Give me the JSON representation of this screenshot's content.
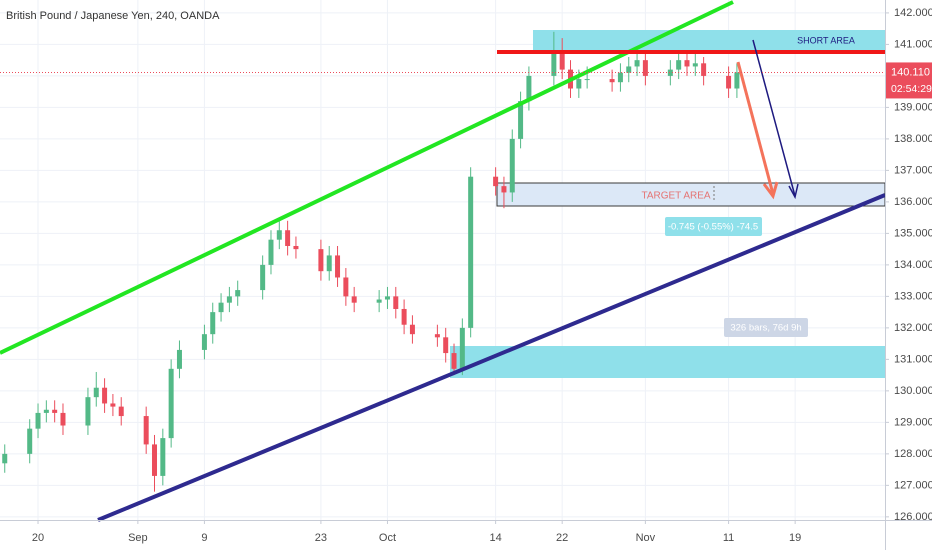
{
  "chart_data": {
    "type": "candlestick",
    "title": "British Pound / Japanese Yen, 240, OANDA",
    "x": [
      16,
      19,
      20,
      21,
      22,
      23,
      26,
      27,
      28,
      29,
      30,
      33,
      34,
      35,
      36,
      37,
      40,
      41,
      42,
      43,
      44,
      47,
      48,
      49,
      50,
      51,
      54,
      55,
      56,
      57,
      58,
      61,
      62,
      63,
      64,
      65,
      68,
      69,
      70,
      71,
      72,
      75,
      76,
      77,
      78,
      79,
      82,
      83,
      84,
      85,
      86,
      89,
      90,
      91,
      92,
      93,
      96,
      97,
      98,
      99,
      100,
      103,
      104
    ],
    "open": [
      127.7,
      128.0,
      128.8,
      129.3,
      129.4,
      129.3,
      128.9,
      129.8,
      130.1,
      129.6,
      129.5,
      129.2,
      128.3,
      127.3,
      128.5,
      130.7,
      131.3,
      131.8,
      132.5,
      132.8,
      133.0,
      133.2,
      134.0,
      134.8,
      135.1,
      134.6,
      134.5,
      133.8,
      134.3,
      133.6,
      133.0,
      132.8,
      132.9,
      133.0,
      132.6,
      132.1,
      131.8,
      131.7,
      131.2,
      130.7,
      132.0,
      136.8,
      136.5,
      136.3,
      138.0,
      139.2,
      140.0,
      140.8,
      140.2,
      139.6,
      139.9,
      139.9,
      139.8,
      140.1,
      140.3,
      140.5,
      140.0,
      140.2,
      140.5,
      140.3,
      140.4,
      140.0,
      139.6
    ],
    "high": [
      128.3,
      129.1,
      129.6,
      129.7,
      129.7,
      129.6,
      130.1,
      130.6,
      130.4,
      129.9,
      129.8,
      129.5,
      128.6,
      128.8,
      131.0,
      131.6,
      132.1,
      132.8,
      133.1,
      133.3,
      133.5,
      134.3,
      135.1,
      135.4,
      135.4,
      134.9,
      134.8,
      134.6,
      134.6,
      133.9,
      133.3,
      133.2,
      133.3,
      133.3,
      132.9,
      132.4,
      132.1,
      132.0,
      131.5,
      132.3,
      137.1,
      137.1,
      136.8,
      138.3,
      139.5,
      140.3,
      141.4,
      141.2,
      140.5,
      140.2,
      140.3,
      140.2,
      140.4,
      140.6,
      140.8,
      140.8,
      140.5,
      140.8,
      140.7,
      140.7,
      140.6,
      140.3,
      140.4
    ],
    "low": [
      127.4,
      127.7,
      128.5,
      129.0,
      129.0,
      128.6,
      128.6,
      129.5,
      129.3,
      129.2,
      128.9,
      128.0,
      126.8,
      127.0,
      128.2,
      130.4,
      131.0,
      131.5,
      132.2,
      132.5,
      132.7,
      132.9,
      133.7,
      134.5,
      134.3,
      134.2,
      133.5,
      133.5,
      133.3,
      132.7,
      132.5,
      132.5,
      132.6,
      132.3,
      131.8,
      131.5,
      131.4,
      130.9,
      130.5,
      130.5,
      131.7,
      136.2,
      135.8,
      136.0,
      137.7,
      138.9,
      139.7,
      139.9,
      139.3,
      139.3,
      139.6,
      139.5,
      139.5,
      139.8,
      140.0,
      139.7,
      139.7,
      139.9,
      140.0,
      140.0,
      139.7,
      139.3,
      139.3
    ],
    "close": [
      128.0,
      128.8,
      129.3,
      129.4,
      129.3,
      128.9,
      129.8,
      130.1,
      129.6,
      129.5,
      129.2,
      128.3,
      127.3,
      128.5,
      130.7,
      131.3,
      131.8,
      132.5,
      132.8,
      133.0,
      133.2,
      134.0,
      134.8,
      135.1,
      134.6,
      134.5,
      133.8,
      134.3,
      133.6,
      133.0,
      132.8,
      132.9,
      133.0,
      132.6,
      132.1,
      131.8,
      131.7,
      131.2,
      130.7,
      132.0,
      136.8,
      136.5,
      136.3,
      138.0,
      139.2,
      140.0,
      140.8,
      140.2,
      139.6,
      139.9,
      139.9,
      139.8,
      140.1,
      140.3,
      140.5,
      140.0,
      140.2,
      140.5,
      140.3,
      140.4,
      140.0,
      139.6,
      140.11
    ],
    "up_color": "#53b987",
    "down_color": "#eb4d5c",
    "xlim": [
      15.43,
      121.8
    ],
    "xticks": [
      {
        "value": 20,
        "label": "20"
      },
      {
        "value": 32,
        "label": "Sep"
      },
      {
        "value": 40,
        "label": "9"
      },
      {
        "value": 54,
        "label": "23"
      },
      {
        "value": 62,
        "label": "Oct"
      },
      {
        "value": 75,
        "label": "14"
      },
      {
        "value": 83,
        "label": "22"
      },
      {
        "value": 93,
        "label": "Nov"
      },
      {
        "value": 103,
        "label": "11"
      },
      {
        "value": 111,
        "label": "19"
      }
    ],
    "ylim": [
      125.9,
      142.41
    ],
    "yticks": [
      {
        "value": 126,
        "label": "126.000"
      },
      {
        "value": 127,
        "label": "127.000"
      },
      {
        "value": 128,
        "label": "128.000"
      },
      {
        "value": 129,
        "label": "129.000"
      },
      {
        "value": 130,
        "label": "130.000"
      },
      {
        "value": 131,
        "label": "131.000"
      },
      {
        "value": 132,
        "label": "132.000"
      },
      {
        "value": 133,
        "label": "133.000"
      },
      {
        "value": 134,
        "label": "134.000"
      },
      {
        "value": 135,
        "label": "135.000"
      },
      {
        "value": 136,
        "label": "136.000"
      },
      {
        "value": 137,
        "label": "137.000"
      },
      {
        "value": 138,
        "label": "138.000"
      },
      {
        "value": 139,
        "label": "139.000"
      },
      {
        "value": 140,
        "label": "140.000"
      },
      {
        "value": 141,
        "label": "141.000"
      },
      {
        "value": 142,
        "label": "142.000"
      }
    ],
    "grid": true,
    "last_price": {
      "value": 140.11,
      "label": "140.110"
    },
    "countdown": "02:54:29",
    "annotations": {
      "short_area": "SHORT AREA",
      "target_area": "TARGET AREA",
      "measure": "-0.745 (-0.55%) -74.5",
      "range": "326 bars, 76d 9h"
    }
  }
}
